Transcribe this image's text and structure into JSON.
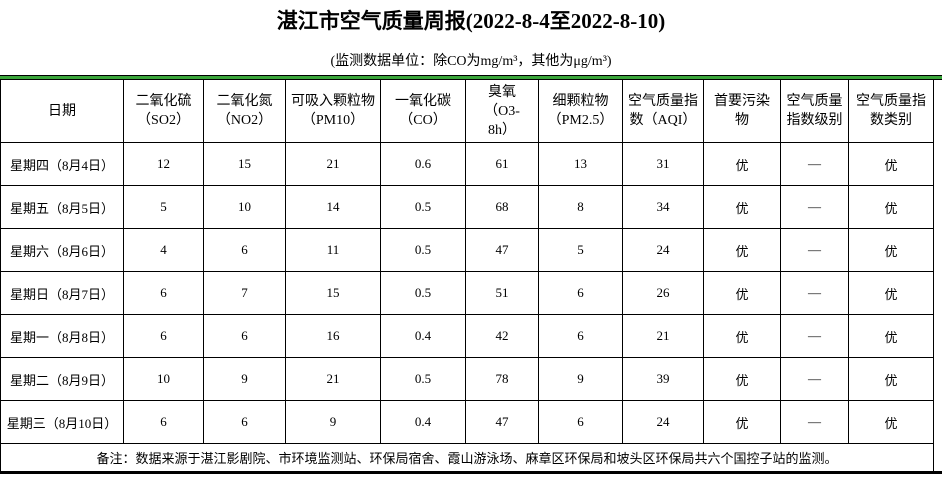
{
  "title": "湛江市空气质量周报(2022-8-4至2022-8-10)",
  "subtitle": "(监测数据单位：除CO为mg/m³，其他为μg/m³)",
  "colors": {
    "gridline_green": "#3aa53a",
    "table_border": "#000000",
    "background": "#ffffff",
    "text": "#000000"
  },
  "chart_data": {
    "type": "table",
    "title": "湛江市空气质量周报(2022-8-4至2022-8-10)",
    "unit_note": "(监测数据单位：除CO为mg/m³，其他为μg/m³)",
    "columns": [
      "日期",
      "二氧化硫（SO2）",
      "二氧化氮（NO2）",
      "可吸入颗粒物（PM10）",
      "一氧化碳（CO）",
      "臭氧（O3-8h）",
      "细颗粒物（PM2.5）",
      "空气质量指数（AQI）",
      "首要污染物",
      "空气质量指数级别",
      "空气质量指数类别"
    ],
    "rows": [
      [
        "星期四（8月4日）",
        "12",
        "15",
        "21",
        "0.6",
        "61",
        "13",
        "31",
        "优",
        "—",
        "优"
      ],
      [
        "星期五（8月5日）",
        "5",
        "10",
        "14",
        "0.5",
        "68",
        "8",
        "34",
        "优",
        "—",
        "优"
      ],
      [
        "星期六（8月6日）",
        "4",
        "6",
        "11",
        "0.5",
        "47",
        "5",
        "24",
        "优",
        "—",
        "优"
      ],
      [
        "星期日（8月7日）",
        "6",
        "7",
        "15",
        "0.5",
        "51",
        "6",
        "26",
        "优",
        "—",
        "优"
      ],
      [
        "星期一（8月8日）",
        "6",
        "6",
        "16",
        "0.4",
        "42",
        "6",
        "21",
        "优",
        "—",
        "优"
      ],
      [
        "星期二（8月9日）",
        "10",
        "9",
        "21",
        "0.5",
        "78",
        "9",
        "39",
        "优",
        "—",
        "优"
      ],
      [
        "星期三（8月10日）",
        "6",
        "6",
        "9",
        "0.4",
        "47",
        "6",
        "24",
        "优",
        "—",
        "优"
      ]
    ],
    "footnote": "备注：数据来源于湛江影剧院、市环境监测站、环保局宿舍、霞山游泳场、麻章区环保局和坡头区环保局共六个国控子站的监测。"
  },
  "table": {
    "headers": [
      "日期",
      "二氧化硫\n（SO2）",
      "二氧化氮\n（NO2）",
      "可吸入颗粒物\n（PM10）",
      "一氧化碳\n（CO）",
      "臭氧\n（O3-\n8h）",
      "细颗粒物\n（PM2.5）",
      "空气质量指\n数（AQI）",
      "首要污染\n物",
      "空气质量\n指数级别",
      "空气质量指\n数类别"
    ],
    "rows": [
      [
        "星期四（8月4日）",
        "12",
        "15",
        "21",
        "0.6",
        "61",
        "13",
        "31",
        "优",
        "—",
        "优"
      ],
      [
        "星期五（8月5日）",
        "5",
        "10",
        "14",
        "0.5",
        "68",
        "8",
        "34",
        "优",
        "—",
        "优"
      ],
      [
        "星期六（8月6日）",
        "4",
        "6",
        "11",
        "0.5",
        "47",
        "5",
        "24",
        "优",
        "—",
        "优"
      ],
      [
        "星期日（8月7日）",
        "6",
        "7",
        "15",
        "0.5",
        "51",
        "6",
        "26",
        "优",
        "—",
        "优"
      ],
      [
        "星期一（8月8日）",
        "6",
        "6",
        "16",
        "0.4",
        "42",
        "6",
        "21",
        "优",
        "—",
        "优"
      ],
      [
        "星期二（8月9日）",
        "10",
        "9",
        "21",
        "0.5",
        "78",
        "9",
        "39",
        "优",
        "—",
        "优"
      ],
      [
        "星期三（8月10日）",
        "6",
        "6",
        "9",
        "0.4",
        "47",
        "6",
        "24",
        "优",
        "—",
        "优"
      ]
    ],
    "footnote": "备注：数据来源于湛江影剧院、市环境监测站、环保局宿舍、霞山游泳场、麻章区环保局和坡头区环保局共六个国控子站的监测。"
  }
}
